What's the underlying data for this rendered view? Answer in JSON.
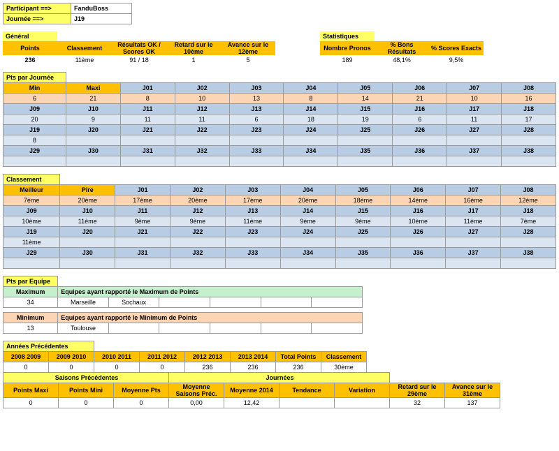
{
  "participant_label": "Participant ==>",
  "participant_value": "FanduBoss",
  "journee_label": "Journée ==>",
  "journee_value": "J19",
  "general_label": "Général",
  "stats_label": "Statistiques",
  "gen_h": [
    "Points",
    "Classement",
    "Résultats OK / Scores OK",
    "Retard sur le 10ème",
    "Avance sur le 12ème"
  ],
  "gen_v": [
    "236",
    "11ème",
    "91  /  18",
    "1",
    "5"
  ],
  "stat_h": [
    "Nombre Pronos",
    "% Bons Résultats",
    "% Scores Exacts"
  ],
  "stat_v": [
    "189",
    "48,1%",
    "9,5%"
  ],
  "pts_journee_label": "Pts par Journée",
  "pj_h": [
    "Min",
    "Maxi",
    "J01",
    "J02",
    "J03",
    "J04",
    "J05",
    "J06",
    "J07",
    "J08"
  ],
  "pj_r1": [
    "6",
    "21",
    "8",
    "10",
    "13",
    "8",
    "14",
    "21",
    "10",
    "16"
  ],
  "pj_r2h": [
    "J09",
    "J10",
    "J11",
    "J12",
    "J13",
    "J14",
    "J15",
    "J16",
    "J17",
    "J18"
  ],
  "pj_r2v": [
    "20",
    "9",
    "11",
    "11",
    "6",
    "18",
    "19",
    "6",
    "11",
    "17"
  ],
  "pj_r3h": [
    "J19",
    "J20",
    "J21",
    "J22",
    "J23",
    "J24",
    "J25",
    "J26",
    "J27",
    "J28"
  ],
  "pj_r3v": [
    "8",
    "",
    "",
    "",
    "",
    "",
    "",
    "",
    "",
    ""
  ],
  "pj_r4h": [
    "J29",
    "J30",
    "J31",
    "J32",
    "J33",
    "J34",
    "J35",
    "J36",
    "J37",
    "J38"
  ],
  "classement_label": "Classement",
  "cl_h": [
    "Meilleur",
    "Pire",
    "J01",
    "J02",
    "J03",
    "J04",
    "J05",
    "J06",
    "J07",
    "J08"
  ],
  "cl_r1": [
    "7ème",
    "20ème",
    "17ème",
    "20ème",
    "17ème",
    "20ème",
    "18ème",
    "14ème",
    "16ème",
    "12ème"
  ],
  "cl_r2h": [
    "J09",
    "J10",
    "J11",
    "J12",
    "J13",
    "J14",
    "J15",
    "J16",
    "J17",
    "J18"
  ],
  "cl_r2v": [
    "10ème",
    "11ème",
    "9ème",
    "9ème",
    "11ème",
    "9ème",
    "9ème",
    "10ème",
    "11ème",
    "7ème"
  ],
  "cl_r3h": [
    "J19",
    "J20",
    "J21",
    "J22",
    "J23",
    "J24",
    "J25",
    "J26",
    "J27",
    "J28"
  ],
  "cl_r3v": [
    "11ème",
    "",
    "",
    "",
    "",
    "",
    "",
    "",
    "",
    ""
  ],
  "cl_r4h": [
    "J29",
    "J30",
    "J31",
    "J32",
    "J33",
    "J34",
    "J35",
    "J36",
    "J37",
    "J38"
  ],
  "pts_equipe_label": "Pts par Equipe",
  "max_label": "Maximum",
  "max_text": "Equipes ayant rapporté le Maximum de Points",
  "max_val": "34",
  "max_t1": "Marseille",
  "max_t2": "Sochaux",
  "min_label": "Minimum",
  "min_text": "Equipes ayant rapporté le Minimum de Points",
  "min_val": "13",
  "min_t1": "Toulouse",
  "ap_label": "Années Précédentes",
  "ap_h": [
    "2008  2009",
    "2009  2010",
    "2010  2011",
    "2011  2012",
    "2012  2013",
    "2013  2014",
    "Total Points",
    "Classement"
  ],
  "ap_v": [
    "0",
    "0",
    "0",
    "0",
    "236",
    "236",
    "236",
    "30ème"
  ],
  "sp_label": "Saisons Précédentes",
  "jr_label": "Journées",
  "sp_h": [
    "Points Maxi",
    "Points Mini",
    "Moyenne Pts"
  ],
  "sp_v": [
    "0",
    "0",
    "0"
  ],
  "jr_h": [
    "Moyenne Saisons Préc.",
    "Moyenne 2014",
    "Tendance",
    "Variation"
  ],
  "jr_v": [
    "0,00",
    "12,42",
    "",
    ""
  ],
  "ext_h": [
    "Retard sur le 29ème",
    "Avance sur le 31ème"
  ],
  "ext_v": [
    "32",
    "137"
  ]
}
